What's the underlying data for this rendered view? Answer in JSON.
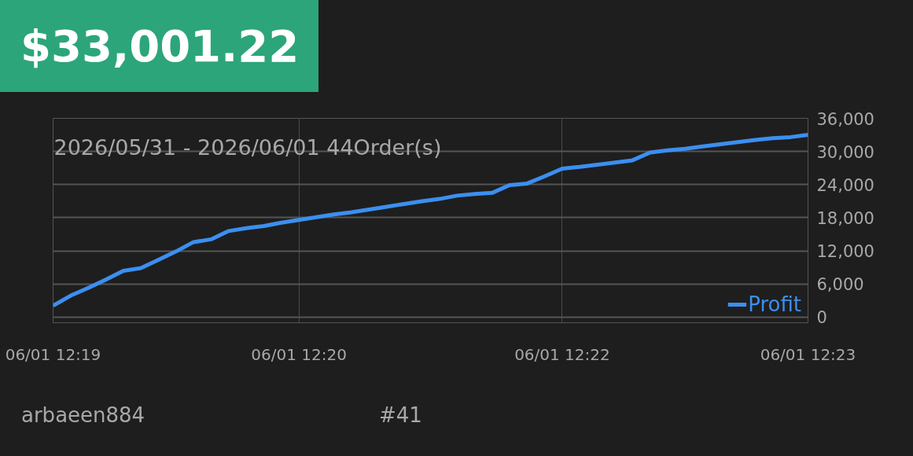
{
  "chart_data": {
    "type": "line",
    "title": "$33,001.22",
    "annotations": [
      "2026/05/31 - 2026/06/01  44Order(s)",
      "arbaeen884",
      "#41"
    ],
    "categories": [
      "06/01 12:19",
      null,
      null,
      null,
      null,
      null,
      null,
      null,
      null,
      null,
      null,
      null,
      null,
      null,
      "06/01 12:20",
      null,
      null,
      null,
      null,
      null,
      null,
      null,
      null,
      null,
      null,
      null,
      null,
      null,
      null,
      "06/01 12:22",
      null,
      null,
      null,
      null,
      null,
      null,
      null,
      null,
      null,
      null,
      null,
      null,
      null,
      "06/01 12:23"
    ],
    "series": [
      {
        "name": "Profit",
        "color": "#3b8ff0",
        "values": [
          2100,
          3900,
          5300,
          6800,
          8400,
          8900,
          10400,
          11900,
          13600,
          14100,
          15600,
          16100,
          16500,
          17100,
          17600,
          18100,
          18600,
          19000,
          19500,
          20000,
          20500,
          21000,
          21400,
          22000,
          22300,
          22500,
          23900,
          24200,
          25500,
          26900,
          27200,
          27600,
          28000,
          28400,
          29800,
          30200,
          30500,
          30900,
          31300,
          31700,
          32100,
          32400,
          32600,
          33000
        ]
      }
    ],
    "ylim": [
      -1000,
      36000
    ],
    "yticks": [
      {
        "value": 0,
        "label": "0"
      },
      {
        "value": 6000,
        "label": "6,000"
      },
      {
        "value": 12000,
        "label": "12,000"
      },
      {
        "value": 18000,
        "label": "18,000"
      },
      {
        "value": 24000,
        "label": "24,000"
      },
      {
        "value": 30000,
        "label": "30,000"
      },
      {
        "value": 36000,
        "label": "36,000"
      }
    ],
    "grid": true,
    "legend": "bottom right",
    "marker": "none",
    "line_style": "solid"
  }
}
